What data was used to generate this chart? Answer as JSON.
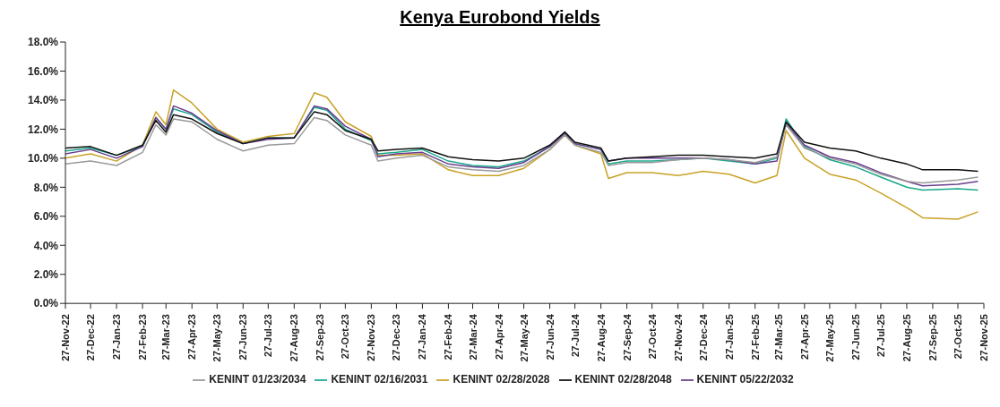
{
  "chart_data": {
    "type": "line",
    "title": "Kenya Eurobond Yields",
    "x": [
      "2022-11-27",
      "2022-12-27",
      "2023-01-27",
      "2023-02-27",
      "2023-03-15",
      "2023-03-27",
      "2023-04-05",
      "2023-04-27",
      "2023-05-27",
      "2023-06-27",
      "2023-07-27",
      "2023-08-27",
      "2023-09-20",
      "2023-10-05",
      "2023-10-27",
      "2023-11-27",
      "2023-12-05",
      "2023-12-27",
      "2024-01-27",
      "2024-02-27",
      "2024-03-27",
      "2024-04-27",
      "2024-05-27",
      "2024-06-27",
      "2024-07-15",
      "2024-07-27",
      "2024-08-27",
      "2024-09-05",
      "2024-09-27",
      "2024-10-27",
      "2024-11-27",
      "2024-12-27",
      "2025-01-27",
      "2025-02-27",
      "2025-03-25",
      "2025-04-05",
      "2025-04-27",
      "2025-05-27",
      "2025-06-27",
      "2025-07-27",
      "2025-08-27",
      "2025-09-15",
      "2025-10-27",
      "2025-11-20"
    ],
    "series": [
      {
        "name": "KENINT 02/28/2028",
        "color": "#c9a227",
        "values": [
          10.0,
          10.3,
          9.8,
          10.9,
          13.2,
          12.3,
          14.7,
          13.8,
          12.0,
          11.1,
          11.5,
          11.7,
          14.5,
          14.2,
          12.5,
          11.5,
          10.2,
          10.2,
          10.3,
          9.2,
          8.8,
          8.8,
          9.3,
          10.6,
          11.6,
          10.9,
          10.3,
          8.6,
          9.0,
          9.0,
          8.8,
          9.1,
          8.9,
          8.3,
          8.8,
          11.9,
          10.0,
          8.9,
          8.5,
          7.6,
          6.6,
          5.9,
          5.8,
          6.3
        ]
      },
      {
        "name": "KENINT 02/16/2031",
        "color": "#1aa88a",
        "values": [
          10.5,
          10.7,
          10.2,
          10.8,
          12.8,
          12.0,
          13.4,
          13.0,
          11.8,
          11.0,
          11.4,
          11.4,
          13.5,
          13.3,
          12.0,
          11.2,
          10.3,
          10.4,
          10.6,
          9.8,
          9.5,
          9.4,
          9.8,
          10.8,
          11.8,
          11.0,
          10.6,
          9.6,
          9.8,
          9.8,
          9.9,
          10.0,
          9.8,
          9.6,
          10.0,
          12.7,
          10.8,
          9.9,
          9.4,
          8.7,
          8.0,
          7.8,
          7.9,
          7.8
        ]
      },
      {
        "name": "KENINT 05/22/2032",
        "color": "#6a3d8f",
        "values": [
          10.3,
          10.6,
          10.0,
          10.8,
          12.8,
          12.0,
          13.6,
          13.1,
          11.9,
          11.0,
          11.3,
          11.4,
          13.6,
          13.4,
          12.2,
          11.3,
          10.1,
          10.3,
          10.4,
          9.6,
          9.4,
          9.3,
          9.7,
          10.8,
          11.7,
          11.0,
          10.6,
          9.8,
          10.0,
          10.0,
          10.0,
          10.0,
          9.9,
          9.6,
          9.8,
          12.4,
          10.9,
          10.1,
          9.7,
          9.0,
          8.4,
          8.1,
          8.2,
          8.4
        ]
      },
      {
        "name": "KENINT 01/23/2034",
        "color": "#9a9a9a",
        "values": [
          9.6,
          9.8,
          9.5,
          10.4,
          12.3,
          11.6,
          12.7,
          12.5,
          11.3,
          10.5,
          10.9,
          11.0,
          12.8,
          12.6,
          11.6,
          10.9,
          9.8,
          10.0,
          10.2,
          9.4,
          9.2,
          9.1,
          9.5,
          10.6,
          11.6,
          10.9,
          10.4,
          9.5,
          9.7,
          9.7,
          9.9,
          10.0,
          9.9,
          9.7,
          10.1,
          12.3,
          10.7,
          10.0,
          9.6,
          8.9,
          8.4,
          8.3,
          8.5,
          8.7
        ]
      },
      {
        "name": "KENINT 02/28/2048",
        "color": "#111111",
        "values": [
          10.7,
          10.8,
          10.2,
          10.9,
          12.6,
          11.8,
          13.0,
          12.7,
          11.7,
          11.0,
          11.4,
          11.4,
          13.2,
          13.0,
          11.9,
          11.3,
          10.5,
          10.6,
          10.7,
          10.1,
          9.9,
          9.8,
          10.0,
          10.9,
          11.8,
          11.1,
          10.7,
          9.8,
          10.0,
          10.1,
          10.2,
          10.2,
          10.1,
          10.0,
          10.3,
          12.5,
          11.1,
          10.7,
          10.5,
          10.0,
          9.6,
          9.2,
          9.2,
          9.1
        ]
      }
    ],
    "xlim": [
      "2022-11-27",
      "2025-11-27"
    ],
    "xticks": [
      {
        "value": "2022-11-27",
        "label": "27-Nov-22"
      },
      {
        "value": "2022-12-27",
        "label": "27-Dec-22"
      },
      {
        "value": "2023-01-27",
        "label": "27-Jan-23"
      },
      {
        "value": "2023-02-27",
        "label": "27-Feb-23"
      },
      {
        "value": "2023-03-27",
        "label": "27-Mar-23"
      },
      {
        "value": "2023-04-27",
        "label": "27-Apr-23"
      },
      {
        "value": "2023-05-27",
        "label": "27-May-23"
      },
      {
        "value": "2023-06-27",
        "label": "27-Jun-23"
      },
      {
        "value": "2023-07-27",
        "label": "27-Jul-23"
      },
      {
        "value": "2023-08-27",
        "label": "27-Aug-23"
      },
      {
        "value": "2023-09-27",
        "label": "27-Sep-23"
      },
      {
        "value": "2023-10-27",
        "label": "27-Oct-23"
      },
      {
        "value": "2023-11-27",
        "label": "27-Nov-23"
      },
      {
        "value": "2023-12-27",
        "label": "27-Dec-23"
      },
      {
        "value": "2024-01-27",
        "label": "27-Jan-24"
      },
      {
        "value": "2024-02-27",
        "label": "27-Feb-24"
      },
      {
        "value": "2024-03-27",
        "label": "27-Mar-24"
      },
      {
        "value": "2024-04-27",
        "label": "27-Apr-24"
      },
      {
        "value": "2024-05-27",
        "label": "27-May-24"
      },
      {
        "value": "2024-06-27",
        "label": "27-Jun-24"
      },
      {
        "value": "2024-07-27",
        "label": "27-Jul-24"
      },
      {
        "value": "2024-08-27",
        "label": "27-Aug-24"
      },
      {
        "value": "2024-09-27",
        "label": "27-Sep-24"
      },
      {
        "value": "2024-10-27",
        "label": "27-Oct-24"
      },
      {
        "value": "2024-11-27",
        "label": "27-Nov-24"
      },
      {
        "value": "2024-12-27",
        "label": "27-Dec-24"
      },
      {
        "value": "2025-01-27",
        "label": "27-Jan-25"
      },
      {
        "value": "2025-02-27",
        "label": "27-Feb-25"
      },
      {
        "value": "2025-03-27",
        "label": "27-Mar-25"
      },
      {
        "value": "2025-04-27",
        "label": "27-Apr-25"
      },
      {
        "value": "2025-05-27",
        "label": "27-May-25"
      },
      {
        "value": "2025-06-27",
        "label": "27-Jun-25"
      },
      {
        "value": "2025-07-27",
        "label": "27-Jul-25"
      },
      {
        "value": "2025-08-27",
        "label": "27-Aug-25"
      },
      {
        "value": "2025-09-27",
        "label": "27-Sep-25"
      },
      {
        "value": "2025-10-27",
        "label": "27-Oct-25"
      },
      {
        "value": "2025-11-27",
        "label": "27-Nov-25"
      }
    ],
    "ylim": [
      0,
      18
    ],
    "yticks": [
      {
        "value": 0,
        "label": "0.0%"
      },
      {
        "value": 2,
        "label": "2.0%"
      },
      {
        "value": 4,
        "label": "4.0%"
      },
      {
        "value": 6,
        "label": "6.0%"
      },
      {
        "value": 8,
        "label": "8.0%"
      },
      {
        "value": 10,
        "label": "10.0%"
      },
      {
        "value": 12,
        "label": "12.0%"
      },
      {
        "value": 14,
        "label": "14.0%"
      },
      {
        "value": 16,
        "label": "16.0%"
      },
      {
        "value": 18,
        "label": "18.0%"
      }
    ],
    "grid": false,
    "legend": "bottom",
    "marker": "none",
    "line_style": "solid"
  }
}
